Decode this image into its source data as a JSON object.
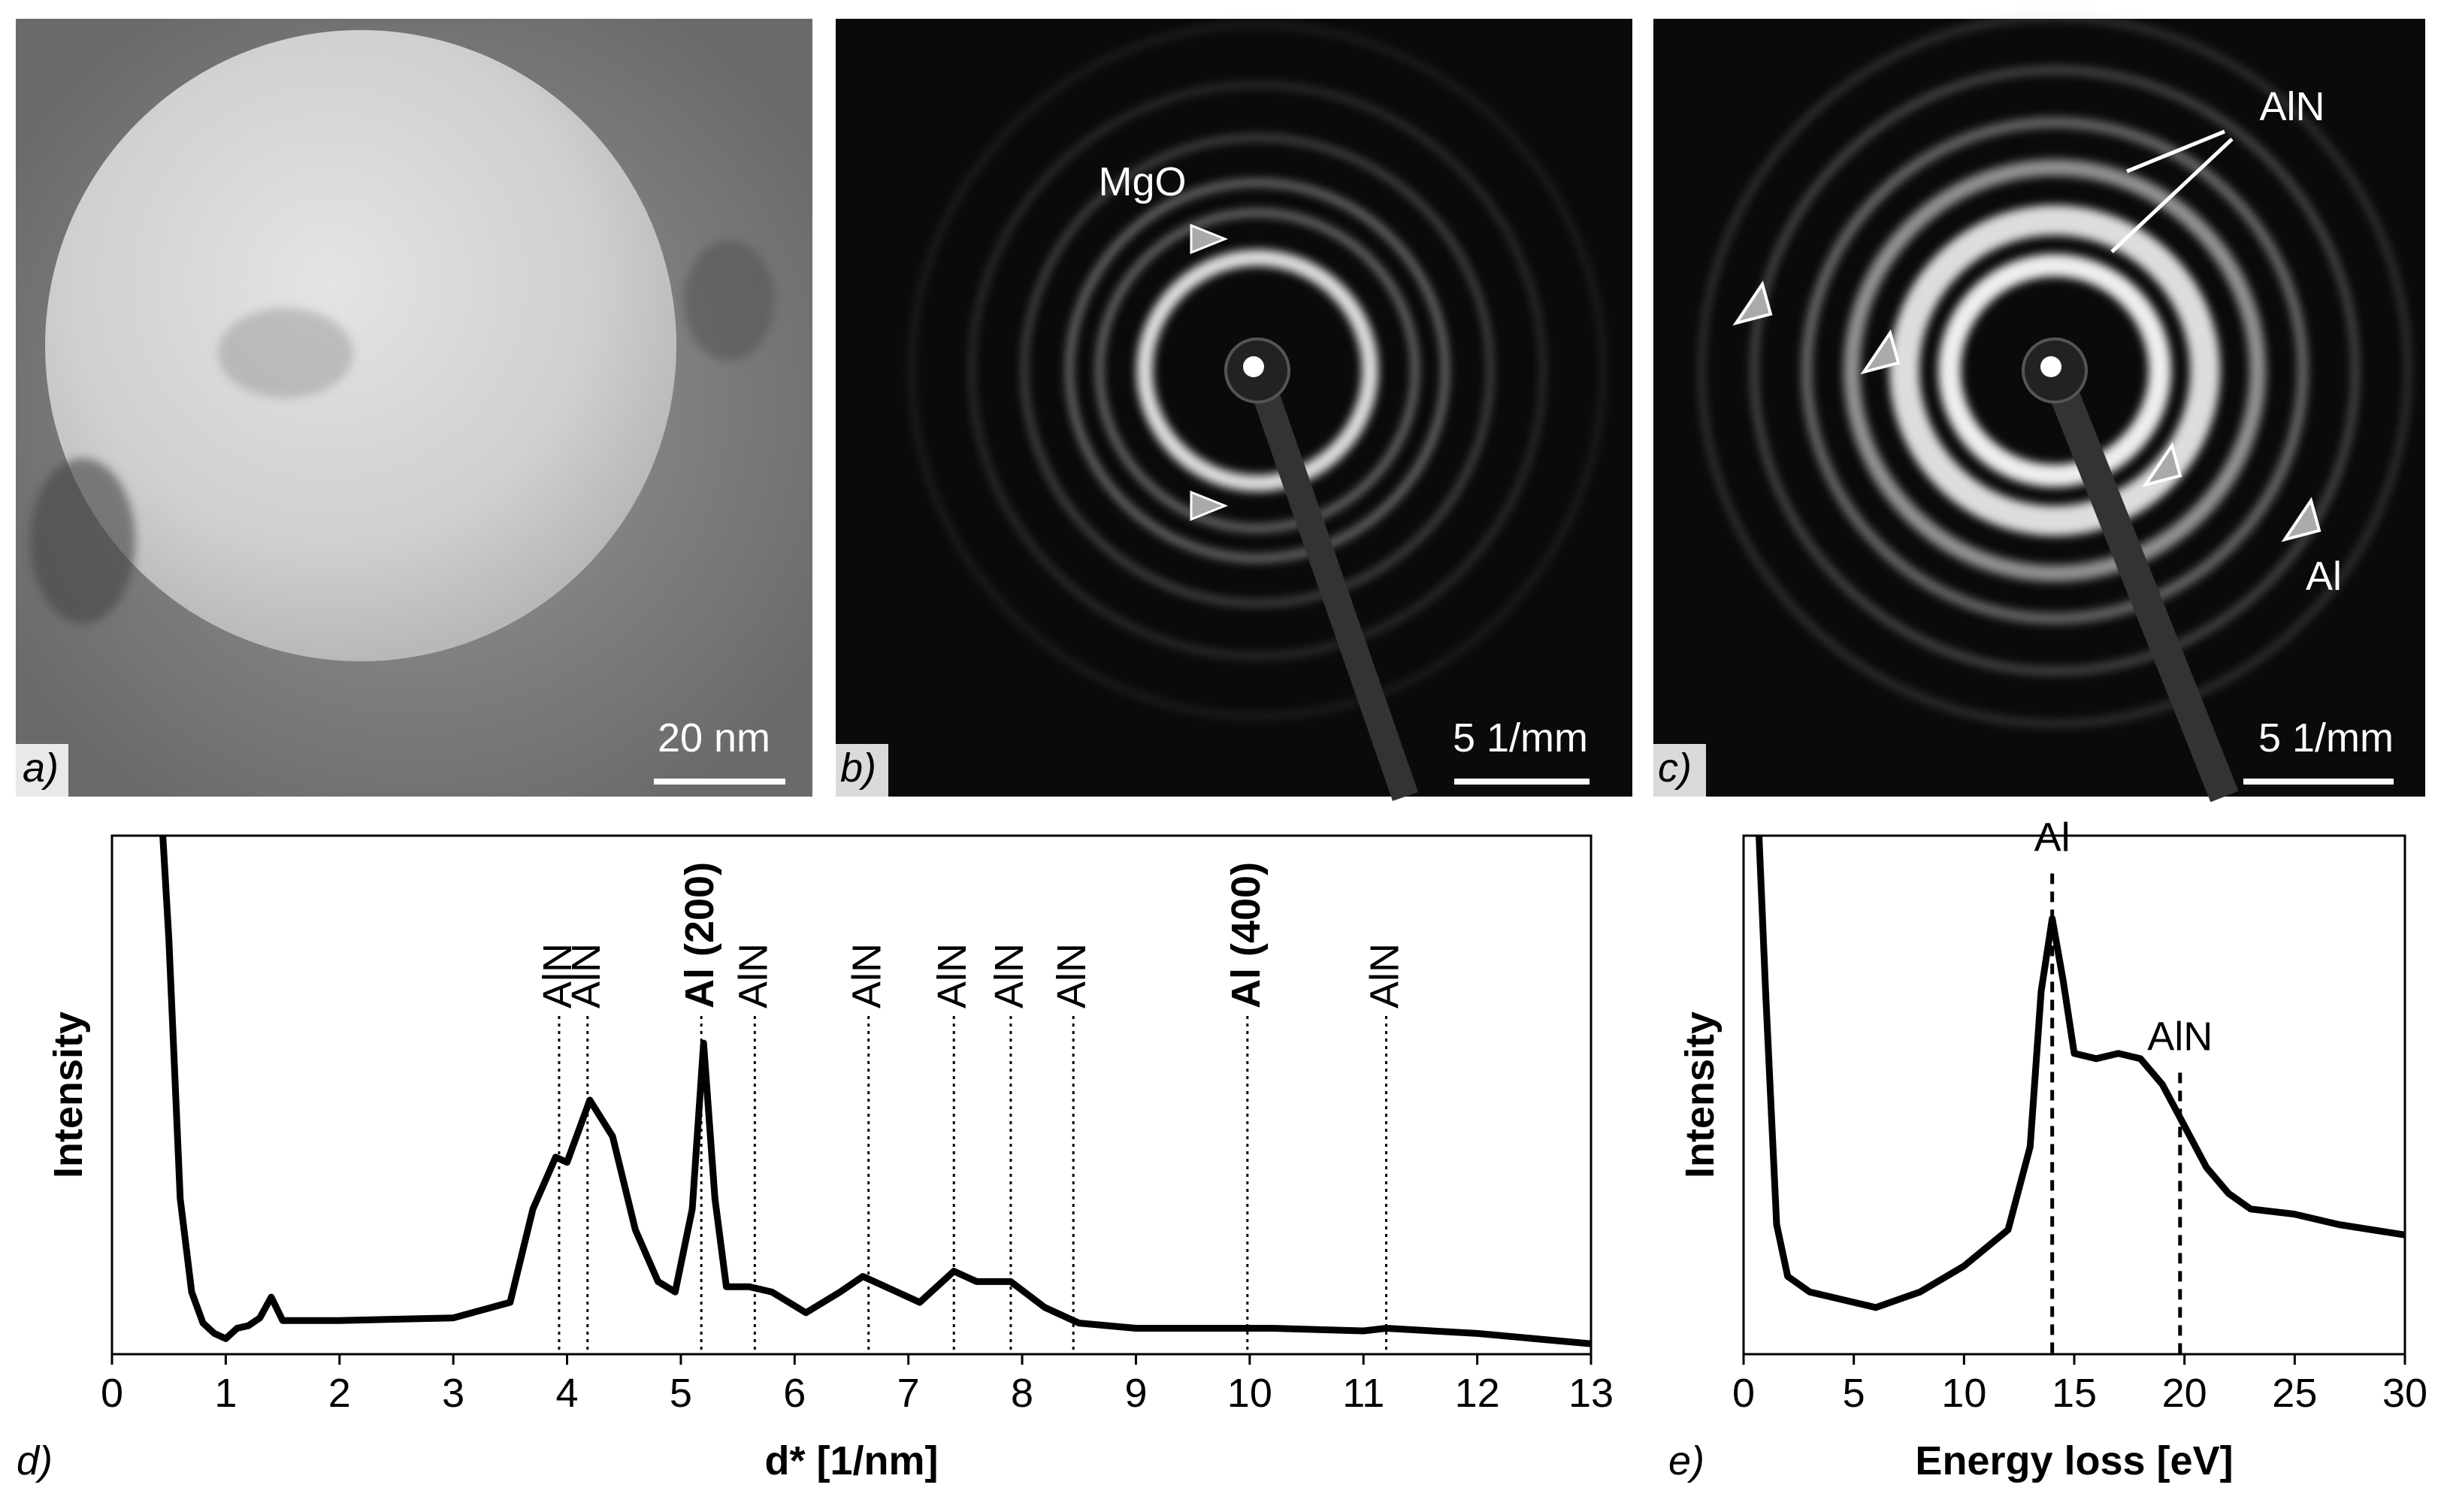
{
  "panels": [
    {
      "label": "a)",
      "scale_bar": "20 nm"
    },
    {
      "label": "b)",
      "scale_bar": "5 1/mm",
      "annotations": [
        "MgO"
      ]
    },
    {
      "label": "c)",
      "scale_bar": "5 1/mm",
      "annotations": [
        "AlN",
        "Al"
      ]
    }
  ],
  "chart_data": [
    {
      "type": "line",
      "panel_label": "d)",
      "x_label": "d* [1/nm]",
      "y_label": "Intensity",
      "color": "#000000",
      "x": [
        0.42,
        0.5,
        0.6,
        0.7,
        0.8,
        0.9,
        1.0,
        1.1,
        1.2,
        1.3,
        1.4,
        1.5,
        2.0,
        3.0,
        3.5,
        3.7,
        3.9,
        4.0,
        4.2,
        4.4,
        4.6,
        4.8,
        4.95,
        5.1,
        5.2,
        5.3,
        5.4,
        5.6,
        5.8,
        6.1,
        6.4,
        6.6,
        6.9,
        7.1,
        7.4,
        7.6,
        7.9,
        8.2,
        8.5,
        9.0,
        10.2,
        11.0,
        11.2,
        12.0,
        13.0
      ],
      "values": [
        110,
        80,
        30,
        12,
        6,
        4,
        3,
        5,
        5.5,
        7,
        11,
        6.5,
        6.5,
        7,
        10,
        28,
        38,
        37,
        49,
        42,
        24,
        14,
        12,
        28,
        60,
        30,
        13,
        13,
        12,
        8,
        12,
        15,
        12,
        10,
        16,
        14,
        14,
        9,
        6,
        5,
        5,
        4.5,
        5,
        4,
        2
      ],
      "xlim": [
        0,
        13
      ],
      "xticks": [
        0,
        1,
        2,
        3,
        4,
        5,
        6,
        7,
        8,
        9,
        10,
        11,
        12,
        13
      ],
      "ylim": [
        0,
        100
      ],
      "marker_style": "dotted",
      "marker_labels": "rotated",
      "markers": [
        {
          "x": 3.93,
          "label": "AlN",
          "bold": false
        },
        {
          "x": 4.18,
          "label": "AlN",
          "bold": false
        },
        {
          "x": 5.18,
          "label": "Al (200)",
          "bold": true
        },
        {
          "x": 5.65,
          "label": "AlN",
          "bold": false
        },
        {
          "x": 6.65,
          "label": "AlN",
          "bold": false
        },
        {
          "x": 7.4,
          "label": "AlN",
          "bold": false
        },
        {
          "x": 7.9,
          "label": "AlN",
          "bold": false
        },
        {
          "x": 8.45,
          "label": "AlN",
          "bold": false
        },
        {
          "x": 9.98,
          "label": "Al (400)",
          "bold": true
        },
        {
          "x": 11.2,
          "label": "AlN",
          "bold": false
        }
      ]
    },
    {
      "type": "line",
      "panel_label": "e)",
      "x_label": "Energy loss [eV]",
      "y_label": "Intensity",
      "color": "#000000",
      "x": [
        0.6,
        1.0,
        1.5,
        2.0,
        3.0,
        5.0,
        6.0,
        8.0,
        10.0,
        12.0,
        13.0,
        13.5,
        14.0,
        14.5,
        15.0,
        16.0,
        17.0,
        18.0,
        19.0,
        20.0,
        21.0,
        22.0,
        23.0,
        25.0,
        27.0,
        30.0
      ],
      "values": [
        110,
        70,
        25,
        15,
        12,
        10,
        9,
        12,
        17,
        24,
        40,
        70,
        84,
        72,
        58,
        57,
        58,
        57,
        52,
        44,
        36,
        31,
        28,
        27,
        25,
        23
      ],
      "xlim": [
        0,
        30
      ],
      "xticks": [
        0,
        5,
        10,
        15,
        20,
        25,
        30
      ],
      "ylim": [
        0,
        100
      ],
      "marker_style": "dashed",
      "marker_labels": "horizontal",
      "markers": [
        {
          "x": 14,
          "label": "Al",
          "bold": false
        },
        {
          "x": 19.8,
          "label": "AlN",
          "bold": false
        }
      ]
    }
  ]
}
